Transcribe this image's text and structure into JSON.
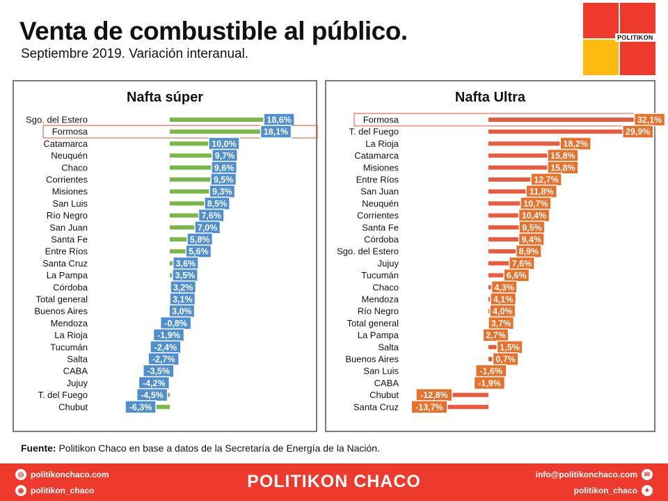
{
  "header": {
    "title": "Venta de combustible al público.",
    "subtitle": "Septiembre 2019. Variación interanual."
  },
  "logo": {
    "text": "POLITIKON",
    "colors": [
      "#ee3a2c",
      "#fdbb10"
    ]
  },
  "chart_data": [
    {
      "type": "bar",
      "orientation": "horizontal",
      "title": "Nafta súper",
      "bar_color": "#7ab648",
      "label_color": "#4f8fcf",
      "highlight": "Formosa",
      "categories": [
        "Sgo. del Estero",
        "Formosa",
        "Catamarca",
        "Neuquén",
        "Chaco",
        "Corrientes",
        "Misiones",
        "San Luis",
        "Río Negro",
        "San Juan",
        "Santa Fe",
        "Entre Ríos",
        "Santa Cruz",
        "La Pampa",
        "Córdoba",
        "Total general",
        "Buenos Aires",
        "Mendoza",
        "La Rioja",
        "Tucumán",
        "Salta",
        "CABA",
        "Jujuy",
        "T. del Fuego",
        "Chubut"
      ],
      "values": [
        18.6,
        18.1,
        10.0,
        9.7,
        9.6,
        9.5,
        9.3,
        8.5,
        7.6,
        7.0,
        5.8,
        5.6,
        3.6,
        3.5,
        3.2,
        3.1,
        3.0,
        -0.8,
        -1.9,
        -2.4,
        -2.7,
        -3.5,
        -4.2,
        -4.5,
        -6.3
      ],
      "labels": [
        "18,6%",
        "18,1%",
        "10,0%",
        "9,7%",
        "9,6%",
        "9,5%",
        "9,3%",
        "8,5%",
        "7,6%",
        "7,0%",
        "5,8%",
        "5,6%",
        "3,6%",
        "3,5%",
        "3,2%",
        "3,1%",
        "3,0%",
        "-0,8%",
        "-1,9%",
        "-2,4%",
        "-2,7%",
        "-3,5%",
        "-4,2%",
        "-4,5%",
        "-6,3%"
      ]
    },
    {
      "type": "bar",
      "orientation": "horizontal",
      "title": "Nafta Ultra",
      "bar_color": "#ea5a3f",
      "label_color": "#e8702a",
      "highlight": "Formosa",
      "categories": [
        "Formosa",
        "T. del Fuego",
        "La Rioja",
        "Catamarca",
        "Misiones",
        "Entre Ríos",
        "San Juan",
        "Neuquén",
        "Corrientes",
        "Santa Fe",
        "Córdoba",
        "Sgo. del Estero",
        "Jujuy",
        "Tucumán",
        "Chaco",
        "Mendoza",
        "Río Negro",
        "Total general",
        "La Pampa",
        "Salta",
        "Buenos Aires",
        "San Luis",
        "CABA",
        "Chubut",
        "Santa Cruz"
      ],
      "values": [
        32.1,
        29.9,
        18.2,
        15.8,
        15.8,
        12.7,
        11.8,
        10.7,
        10.4,
        9.5,
        9.4,
        8.9,
        7.6,
        6.6,
        4.3,
        4.1,
        4.0,
        3.7,
        2.7,
        1.5,
        0.7,
        -1.6,
        -1.9,
        -12.8,
        -13.7
      ],
      "labels": [
        "32,1%",
        "29,9%",
        "18,2%",
        "15,8%",
        "15,8%",
        "12,7%",
        "11,8%",
        "10,7%",
        "10,4%",
        "9,5%",
        "9,4%",
        "8,9%",
        "7,6%",
        "6,6%",
        "4,3%",
        "4,1%",
        "4,0%",
        "3,7%",
        "2,7%",
        "1,5%",
        "0,7%",
        "-1,6%",
        "-1,9%",
        "-12,8%",
        "-13,7%"
      ]
    }
  ],
  "source": {
    "label": "Fuente:",
    "text": " Politikon Chaco en base a datos de la Secretaría  de Energía de la Nación."
  },
  "footer": {
    "brand": "POLITIKON CHACO",
    "web": "politikonchaco.com",
    "instagram": "politikon_chaco",
    "email": "info@politikonchaco.com",
    "twitter": "politikon_chaco"
  }
}
